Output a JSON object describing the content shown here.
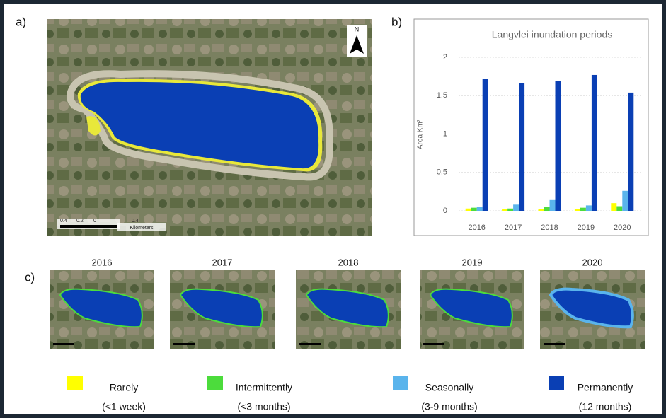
{
  "panels": [
    "a)",
    "b)",
    "c)"
  ],
  "map": {
    "north": "N",
    "scale_ticks": [
      "0.4",
      "0.2",
      "0",
      "0.4"
    ],
    "scale_unit": "Kilometers"
  },
  "maps": [
    "2016",
    "2017",
    "2018",
    "2019",
    "2020"
  ],
  "chart_data": {
    "type": "bar",
    "title": "Langvlei inundation periods",
    "y_label": "Area Km²",
    "categories": [
      "2016",
      "2017",
      "2018",
      "2019",
      "2020"
    ],
    "series": [
      {
        "name": "Rarely",
        "detail": "(<1 week)",
        "color": "#ffff00",
        "values": [
          0.03,
          0.02,
          0.02,
          0.02,
          0.1
        ]
      },
      {
        "name": "Intermittently",
        "detail": "(<3 months)",
        "color": "#4cdc3c",
        "values": [
          0.04,
          0.03,
          0.05,
          0.04,
          0.06
        ]
      },
      {
        "name": "Seasonally",
        "detail": "(3-9 months)",
        "color": "#5ab4ec",
        "values": [
          0.05,
          0.08,
          0.14,
          0.07,
          0.26
        ]
      },
      {
        "name": "Permanently",
        "detail": "(12 months)",
        "color": "#0a3fb4",
        "values": [
          1.72,
          1.66,
          1.69,
          1.77,
          1.54
        ]
      }
    ],
    "ylim": [
      0,
      2
    ],
    "yticks": [
      0,
      0.5,
      1,
      1.5,
      2
    ],
    "grid": true
  }
}
